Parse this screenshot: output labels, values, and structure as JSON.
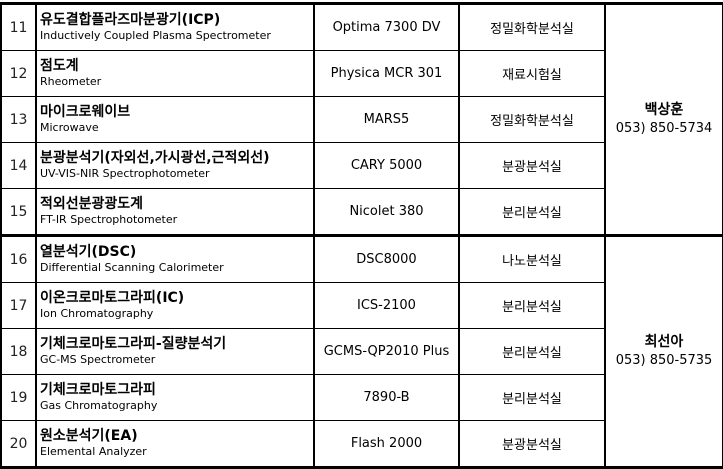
{
  "groups": [
    {
      "contact": {
        "name": "백상훈",
        "phone": "053) 850-5734"
      },
      "rows": [
        {
          "no": "11",
          "name_ko": "유도결합플라즈마분광기(ICP)",
          "name_en": "Inductively Coupled Plasma Spectrometer",
          "model": "Optima 7300 DV",
          "lab": "정밀화학분석실"
        },
        {
          "no": "12",
          "name_ko": "점도계",
          "name_en": "Rheometer",
          "model": "Physica MCR 301",
          "lab": "재료시험실"
        },
        {
          "no": "13",
          "name_ko": "마이크로웨이브",
          "name_en": "Microwave",
          "model": "MARS5",
          "lab": "정밀화학분석실"
        },
        {
          "no": "14",
          "name_ko": "분광분석기(자외선,가시광선,근적외선)",
          "name_en": "UV-VIS-NIR Spectrophotometer",
          "model": "CARY 5000",
          "lab": "분광분석실"
        },
        {
          "no": "15",
          "name_ko": "적외선분광광도계",
          "name_en": "FT-IR Spectrophotometer",
          "model": "Nicolet 380",
          "lab": "분리분석실"
        }
      ]
    },
    {
      "contact": {
        "name": "최선아",
        "phone": "053) 850-5735"
      },
      "rows": [
        {
          "no": "16",
          "name_ko": "열분석기(DSC)",
          "name_en": "Differential Scanning Calorimeter",
          "model": "DSC8000",
          "lab": "나노분석실"
        },
        {
          "no": "17",
          "name_ko": "이온크로마토그라피(IC)",
          "name_en": "Ion Chromatography",
          "model": "ICS-2100",
          "lab": "분리분석실"
        },
        {
          "no": "18",
          "name_ko": "기체크로마토그라피-질량분석기",
          "name_en": "GC-MS Spectrometer",
          "model": "GCMS-QP2010 Plus",
          "lab": "분리분석실"
        },
        {
          "no": "19",
          "name_ko": "기체크로마토그라피",
          "name_en": "Gas Chromatography",
          "model": "7890-B",
          "lab": "분리분석실"
        },
        {
          "no": "20",
          "name_ko": "원소분석기(EA)",
          "name_en": "Elemental Analyzer",
          "model": "Flash 2000",
          "lab": "분광분석실"
        }
      ]
    }
  ]
}
